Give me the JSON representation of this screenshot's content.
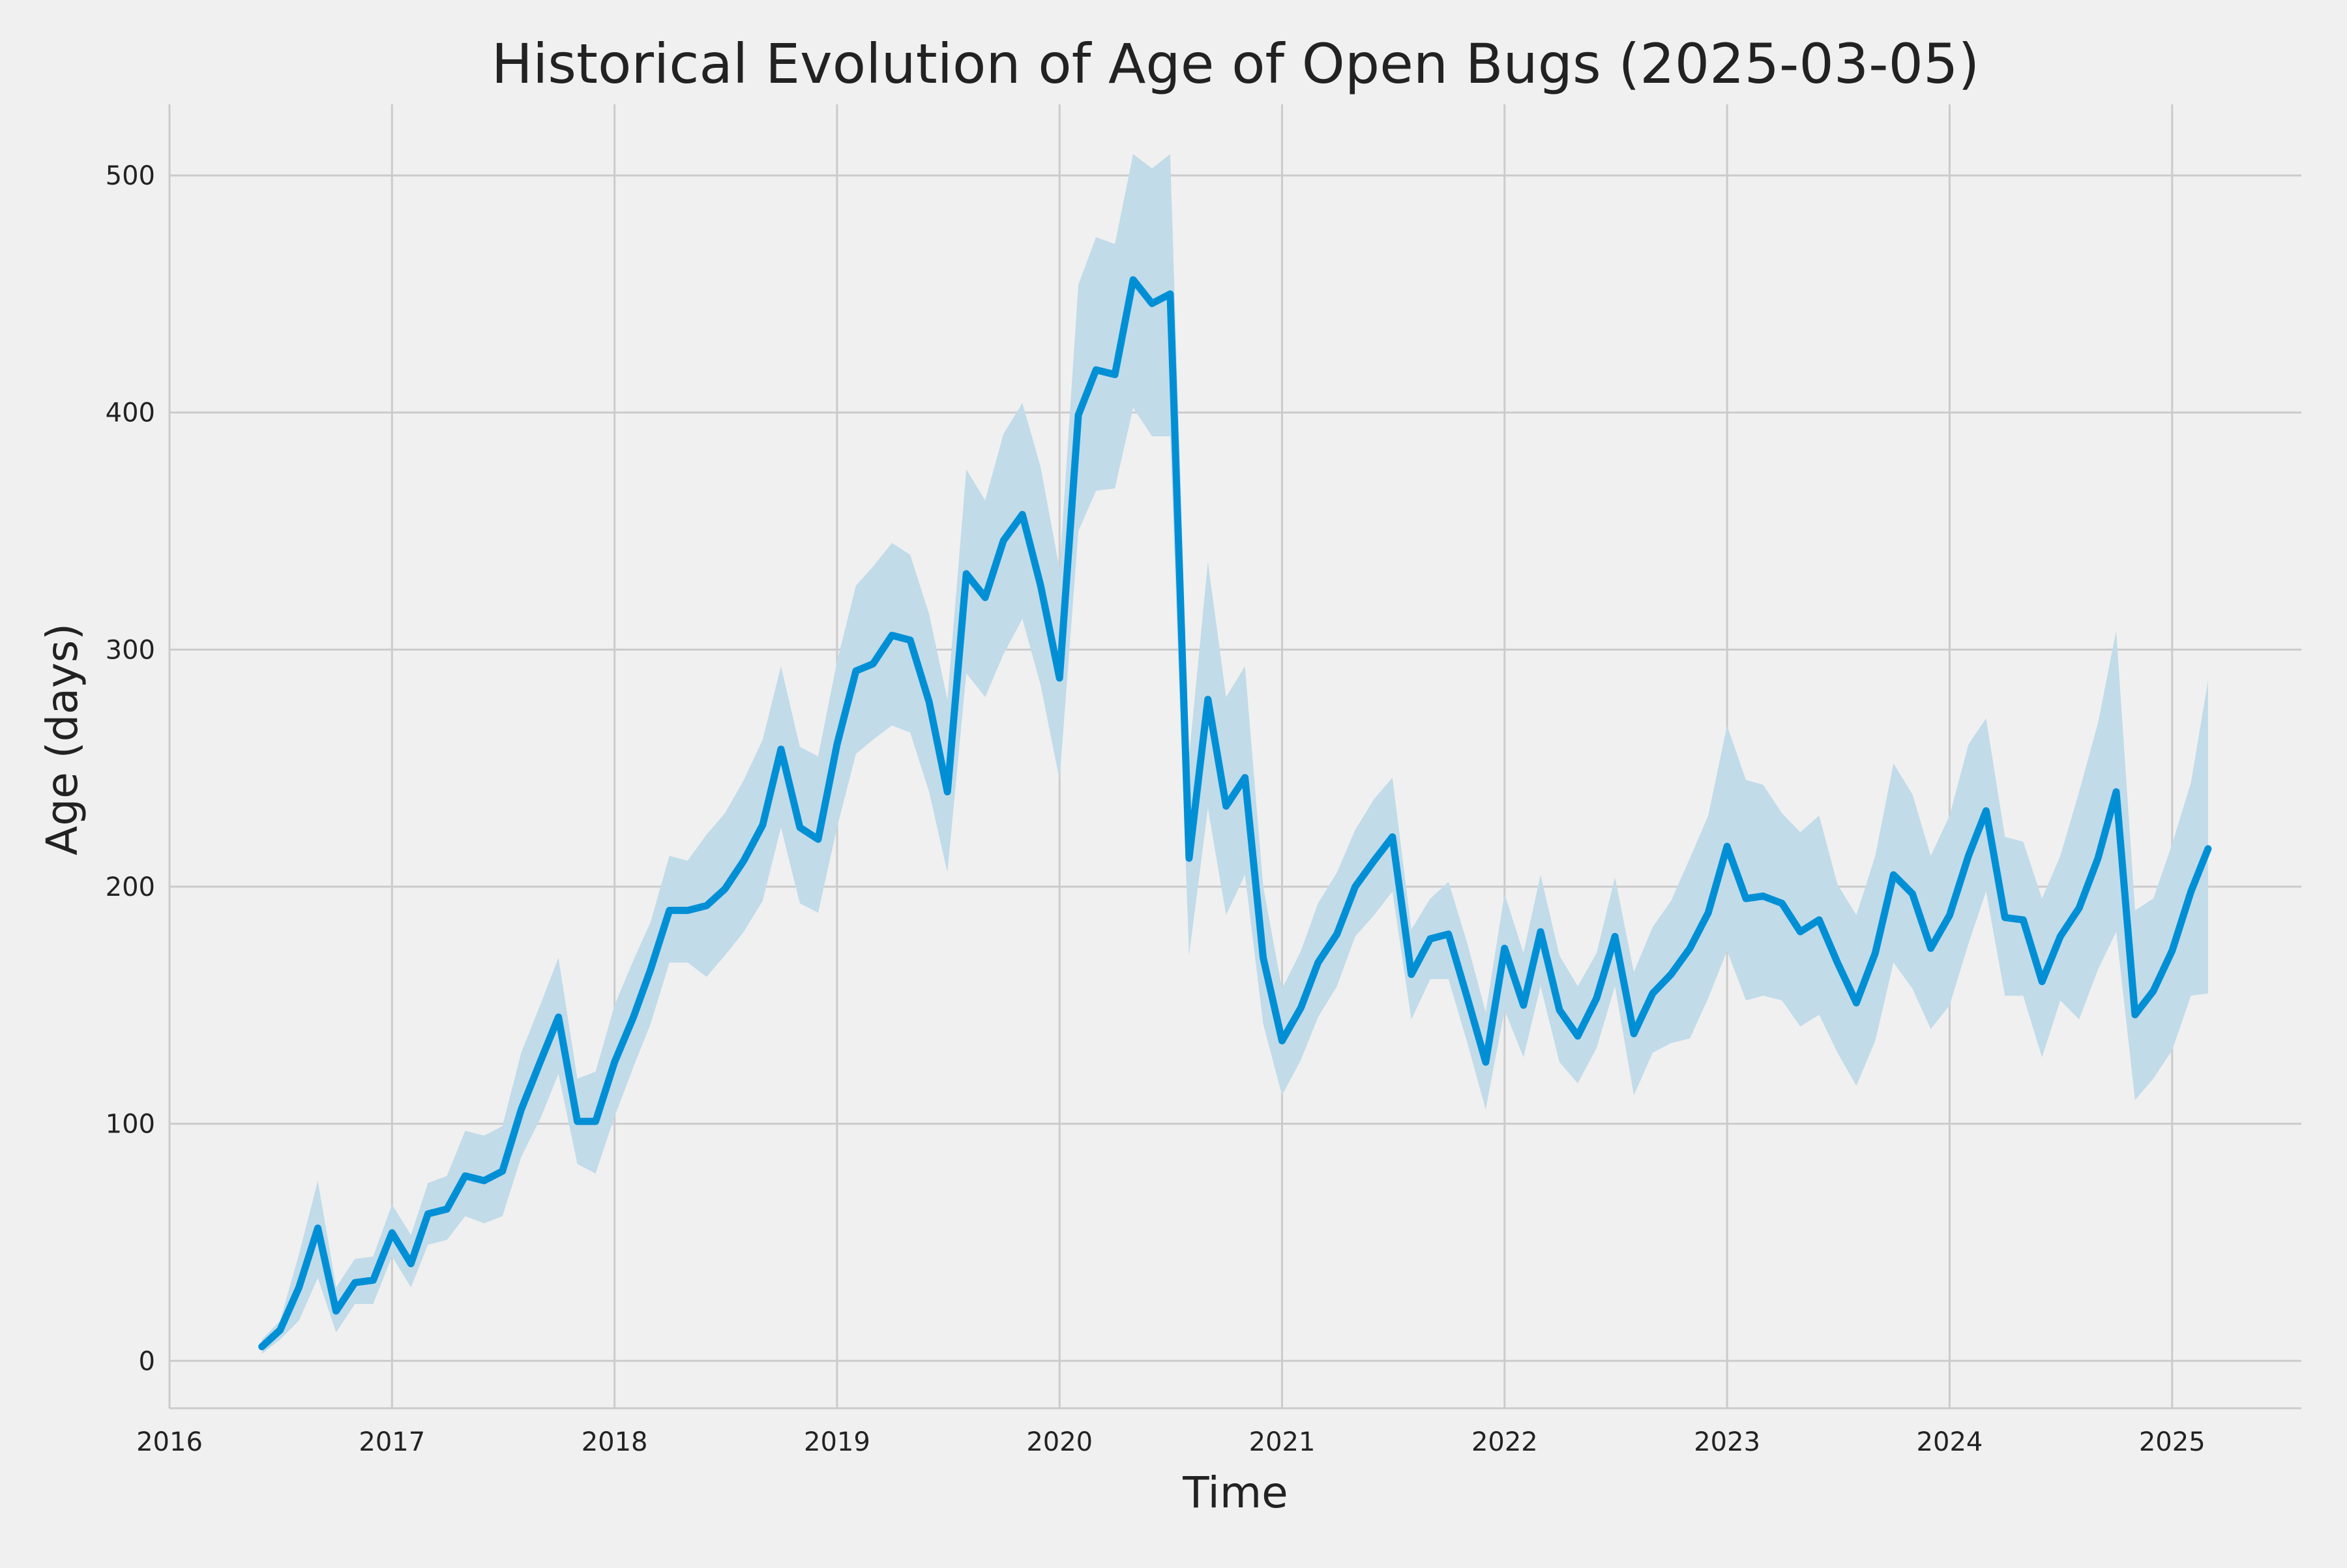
{
  "chart_data": {
    "type": "line",
    "title": "Historical Evolution of Age of Open Bugs (2025-03-05)",
    "xlabel": "Time",
    "ylabel": "Age (days)",
    "xlim": [
      "2016-01-01",
      "2025-08-01"
    ],
    "ylim": [
      -20,
      530
    ],
    "x_ticks": [
      "2016",
      "2017",
      "2018",
      "2019",
      "2020",
      "2021",
      "2022",
      "2023",
      "2024",
      "2025"
    ],
    "y_ticks": [
      0,
      100,
      200,
      300,
      400,
      500
    ],
    "grid": true,
    "line_color": "#008fd5",
    "band_color": "#c1dbe9",
    "series": [
      {
        "x": [
          "2016-06-01",
          "2016-07-01",
          "2016-08-01",
          "2016-09-01",
          "2016-10-01",
          "2016-11-01",
          "2016-12-01",
          "2017-01-01",
          "2017-02-01",
          "2017-03-01",
          "2017-04-01",
          "2017-05-01",
          "2017-06-01",
          "2017-07-01",
          "2017-08-01",
          "2017-09-01",
          "2017-10-01",
          "2017-11-01",
          "2017-12-01",
          "2018-01-01",
          "2018-02-01",
          "2018-03-01",
          "2018-04-01",
          "2018-05-01",
          "2018-06-01",
          "2018-07-01",
          "2018-08-01",
          "2018-09-01",
          "2018-10-01",
          "2018-11-01",
          "2018-12-01",
          "2019-01-01",
          "2019-02-01",
          "2019-03-01",
          "2019-04-01",
          "2019-05-01",
          "2019-06-01",
          "2019-07-01",
          "2019-08-01",
          "2019-09-01",
          "2019-10-01",
          "2019-11-01",
          "2019-12-01",
          "2020-01-01",
          "2020-02-01",
          "2020-03-01",
          "2020-04-01",
          "2020-05-01",
          "2020-06-01",
          "2020-07-01",
          "2020-08-01",
          "2020-09-01",
          "2020-10-01",
          "2020-11-01",
          "2020-12-01",
          "2021-01-01",
          "2021-02-01",
          "2021-03-01",
          "2021-04-01",
          "2021-05-01",
          "2021-06-01",
          "2021-07-01",
          "2021-08-01",
          "2021-09-01",
          "2021-10-01",
          "2021-11-01",
          "2021-12-01",
          "2022-01-01",
          "2022-02-01",
          "2022-03-01",
          "2022-04-01",
          "2022-05-01",
          "2022-06-01",
          "2022-07-01",
          "2022-08-01",
          "2022-09-01",
          "2022-10-01",
          "2022-11-01",
          "2022-12-01",
          "2023-01-01",
          "2023-02-01",
          "2023-03-01",
          "2023-04-01",
          "2023-05-01",
          "2023-06-01",
          "2023-07-01",
          "2023-08-01",
          "2023-09-01",
          "2023-10-01",
          "2023-11-01",
          "2023-12-01",
          "2024-01-01",
          "2024-02-01",
          "2024-03-01",
          "2024-04-01",
          "2024-05-01",
          "2024-06-01",
          "2024-07-01",
          "2024-08-01",
          "2024-09-01",
          "2024-10-01",
          "2024-11-01",
          "2024-12-01",
          "2025-01-01",
          "2025-02-01",
          "2025-03-01"
        ],
        "y": [
          6,
          13,
          31,
          56,
          21,
          33,
          34,
          54,
          41,
          62,
          64,
          78,
          76,
          80,
          106,
          126,
          145,
          101,
          101,
          126,
          145,
          165,
          190,
          190,
          192,
          199,
          211,
          226,
          258,
          225,
          220,
          260,
          291,
          294,
          306,
          304,
          278,
          240,
          332,
          322,
          346,
          357,
          327,
          288,
          399,
          418,
          416,
          456,
          446,
          450,
          212,
          279,
          234,
          246,
          170,
          135,
          149,
          168,
          180,
          200,
          211,
          221,
          163,
          178,
          180,
          153,
          126,
          174,
          150,
          181,
          148,
          137,
          153,
          179,
          138,
          155,
          163,
          174,
          189,
          217,
          195,
          196,
          193,
          181,
          186,
          168,
          151,
          172,
          205,
          197,
          174,
          188,
          213,
          232,
          187,
          186,
          160,
          179,
          191,
          212,
          240,
          146,
          156,
          173,
          198,
          216
        ],
        "y_lower": [
          3,
          9,
          17,
          35,
          12,
          24,
          24,
          44,
          31,
          49,
          51,
          61,
          58,
          61,
          86,
          102,
          121,
          83,
          79,
          103,
          124,
          142,
          168,
          168,
          162,
          171,
          181,
          194,
          225,
          193,
          189,
          225,
          256,
          262,
          268,
          265,
          240,
          206,
          290,
          280,
          298,
          313,
          285,
          245,
          350,
          367,
          368,
          402,
          390,
          390,
          171,
          233,
          188,
          205,
          142,
          112,
          127,
          145,
          158,
          179,
          188,
          198,
          144,
          161,
          161,
          134,
          106,
          148,
          128,
          158,
          126,
          117,
          132,
          158,
          112,
          130,
          134,
          136,
          153,
          173,
          152,
          154,
          152,
          141,
          146,
          130,
          116,
          135,
          168,
          157,
          140,
          150,
          176,
          198,
          154,
          154,
          128,
          152,
          144,
          165,
          181,
          110,
          119,
          131,
          154,
          155
        ],
        "y_upper": [
          9,
          17,
          45,
          76,
          31,
          43,
          44,
          66,
          53,
          75,
          78,
          97,
          95,
          99,
          130,
          150,
          170,
          119,
          122,
          150,
          169,
          185,
          213,
          211,
          222,
          231,
          245,
          262,
          293,
          259,
          255,
          295,
          327,
          335,
          345,
          340,
          315,
          279,
          376,
          363,
          391,
          404,
          377,
          334,
          454,
          474,
          471,
          509,
          503,
          509,
          255,
          337,
          280,
          293,
          200,
          157,
          173,
          193,
          206,
          224,
          237,
          246,
          182,
          195,
          202,
          176,
          147,
          197,
          172,
          205,
          171,
          158,
          172,
          204,
          164,
          183,
          194,
          212,
          230,
          268,
          245,
          243,
          231,
          223,
          230,
          201,
          188,
          213,
          252,
          239,
          213,
          230,
          260,
          271,
          221,
          219,
          195,
          213,
          240,
          269,
          308,
          190,
          195,
          218,
          244,
          287
        ]
      }
    ]
  }
}
